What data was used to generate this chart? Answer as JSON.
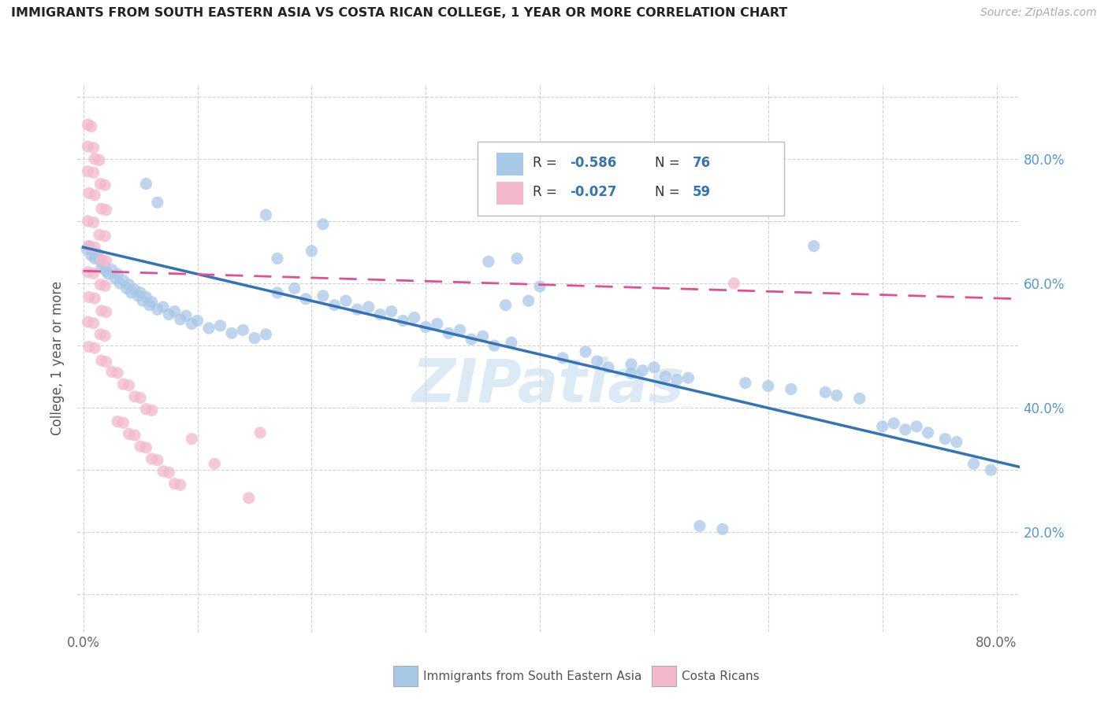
{
  "title": "IMMIGRANTS FROM SOUTH EASTERN ASIA VS COSTA RICAN COLLEGE, 1 YEAR OR MORE CORRELATION CHART",
  "source": "Source: ZipAtlas.com",
  "ylabel": "College, 1 year or more",
  "xlim": [
    -0.005,
    0.82
  ],
  "ylim": [
    0.04,
    0.92
  ],
  "legend_r1": "-0.586",
  "legend_n1": "76",
  "legend_r2": "-0.027",
  "legend_n2": "59",
  "blue_color": "#a8c8e8",
  "pink_color": "#f4b8cc",
  "blue_line_color": "#3474b5",
  "pink_line_color": "#e05090",
  "right_label_color": "#5599cc",
  "blue_scatter": [
    [
      0.003,
      0.655
    ],
    [
      0.005,
      0.66
    ],
    [
      0.007,
      0.645
    ],
    [
      0.009,
      0.65
    ],
    [
      0.01,
      0.64
    ],
    [
      0.012,
      0.648
    ],
    [
      0.014,
      0.638
    ],
    [
      0.016,
      0.625
    ],
    [
      0.018,
      0.63
    ],
    [
      0.02,
      0.62
    ],
    [
      0.022,
      0.615
    ],
    [
      0.025,
      0.622
    ],
    [
      0.028,
      0.608
    ],
    [
      0.03,
      0.615
    ],
    [
      0.032,
      0.6
    ],
    [
      0.035,
      0.605
    ],
    [
      0.038,
      0.592
    ],
    [
      0.04,
      0.598
    ],
    [
      0.042,
      0.585
    ],
    [
      0.045,
      0.59
    ],
    [
      0.048,
      0.58
    ],
    [
      0.05,
      0.585
    ],
    [
      0.052,
      0.572
    ],
    [
      0.055,
      0.578
    ],
    [
      0.058,
      0.565
    ],
    [
      0.06,
      0.57
    ],
    [
      0.065,
      0.558
    ],
    [
      0.07,
      0.562
    ],
    [
      0.075,
      0.55
    ],
    [
      0.08,
      0.555
    ],
    [
      0.085,
      0.542
    ],
    [
      0.09,
      0.548
    ],
    [
      0.095,
      0.535
    ],
    [
      0.1,
      0.54
    ],
    [
      0.11,
      0.528
    ],
    [
      0.12,
      0.532
    ],
    [
      0.13,
      0.52
    ],
    [
      0.14,
      0.525
    ],
    [
      0.15,
      0.512
    ],
    [
      0.16,
      0.518
    ],
    [
      0.055,
      0.76
    ],
    [
      0.065,
      0.73
    ],
    [
      0.16,
      0.71
    ],
    [
      0.21,
      0.695
    ],
    [
      0.17,
      0.64
    ],
    [
      0.2,
      0.652
    ],
    [
      0.17,
      0.585
    ],
    [
      0.185,
      0.592
    ],
    [
      0.195,
      0.575
    ],
    [
      0.21,
      0.58
    ],
    [
      0.22,
      0.565
    ],
    [
      0.23,
      0.572
    ],
    [
      0.24,
      0.558
    ],
    [
      0.25,
      0.562
    ],
    [
      0.26,
      0.55
    ],
    [
      0.27,
      0.555
    ],
    [
      0.28,
      0.54
    ],
    [
      0.29,
      0.545
    ],
    [
      0.3,
      0.53
    ],
    [
      0.31,
      0.535
    ],
    [
      0.32,
      0.52
    ],
    [
      0.33,
      0.525
    ],
    [
      0.34,
      0.51
    ],
    [
      0.35,
      0.515
    ],
    [
      0.355,
      0.635
    ],
    [
      0.38,
      0.64
    ],
    [
      0.37,
      0.565
    ],
    [
      0.39,
      0.572
    ],
    [
      0.36,
      0.5
    ],
    [
      0.375,
      0.505
    ],
    [
      0.4,
      0.595
    ],
    [
      0.42,
      0.48
    ],
    [
      0.44,
      0.49
    ],
    [
      0.45,
      0.475
    ],
    [
      0.46,
      0.465
    ],
    [
      0.48,
      0.47
    ],
    [
      0.49,
      0.46
    ],
    [
      0.5,
      0.465
    ],
    [
      0.48,
      0.455
    ],
    [
      0.51,
      0.45
    ],
    [
      0.52,
      0.445
    ],
    [
      0.53,
      0.448
    ],
    [
      0.54,
      0.21
    ],
    [
      0.56,
      0.205
    ],
    [
      0.58,
      0.44
    ],
    [
      0.6,
      0.435
    ],
    [
      0.62,
      0.43
    ],
    [
      0.64,
      0.66
    ],
    [
      0.65,
      0.425
    ],
    [
      0.66,
      0.42
    ],
    [
      0.68,
      0.415
    ],
    [
      0.7,
      0.37
    ],
    [
      0.71,
      0.375
    ],
    [
      0.72,
      0.365
    ],
    [
      0.73,
      0.37
    ],
    [
      0.74,
      0.36
    ],
    [
      0.755,
      0.35
    ],
    [
      0.765,
      0.345
    ],
    [
      0.78,
      0.31
    ],
    [
      0.795,
      0.3
    ]
  ],
  "pink_scatter": [
    [
      0.004,
      0.855
    ],
    [
      0.007,
      0.852
    ],
    [
      0.004,
      0.82
    ],
    [
      0.009,
      0.818
    ],
    [
      0.01,
      0.8
    ],
    [
      0.014,
      0.798
    ],
    [
      0.004,
      0.78
    ],
    [
      0.009,
      0.778
    ],
    [
      0.015,
      0.76
    ],
    [
      0.019,
      0.758
    ],
    [
      0.005,
      0.745
    ],
    [
      0.01,
      0.742
    ],
    [
      0.016,
      0.72
    ],
    [
      0.02,
      0.718
    ],
    [
      0.004,
      0.7
    ],
    [
      0.009,
      0.698
    ],
    [
      0.014,
      0.678
    ],
    [
      0.019,
      0.676
    ],
    [
      0.005,
      0.66
    ],
    [
      0.01,
      0.658
    ],
    [
      0.016,
      0.638
    ],
    [
      0.02,
      0.636
    ],
    [
      0.004,
      0.618
    ],
    [
      0.009,
      0.616
    ],
    [
      0.015,
      0.598
    ],
    [
      0.019,
      0.596
    ],
    [
      0.005,
      0.578
    ],
    [
      0.01,
      0.576
    ],
    [
      0.016,
      0.556
    ],
    [
      0.02,
      0.554
    ],
    [
      0.004,
      0.538
    ],
    [
      0.009,
      0.536
    ],
    [
      0.015,
      0.518
    ],
    [
      0.019,
      0.516
    ],
    [
      0.005,
      0.498
    ],
    [
      0.01,
      0.496
    ],
    [
      0.016,
      0.476
    ],
    [
      0.02,
      0.474
    ],
    [
      0.025,
      0.458
    ],
    [
      0.03,
      0.456
    ],
    [
      0.035,
      0.438
    ],
    [
      0.04,
      0.436
    ],
    [
      0.045,
      0.418
    ],
    [
      0.05,
      0.416
    ],
    [
      0.055,
      0.398
    ],
    [
      0.06,
      0.396
    ],
    [
      0.03,
      0.378
    ],
    [
      0.035,
      0.376
    ],
    [
      0.04,
      0.358
    ],
    [
      0.045,
      0.356
    ],
    [
      0.05,
      0.338
    ],
    [
      0.055,
      0.336
    ],
    [
      0.06,
      0.318
    ],
    [
      0.065,
      0.316
    ],
    [
      0.07,
      0.298
    ],
    [
      0.075,
      0.296
    ],
    [
      0.08,
      0.278
    ],
    [
      0.085,
      0.276
    ],
    [
      0.095,
      0.35
    ],
    [
      0.115,
      0.31
    ],
    [
      0.145,
      0.255
    ],
    [
      0.155,
      0.36
    ],
    [
      0.57,
      0.6
    ]
  ],
  "blue_trend": [
    0.0,
    0.82,
    0.658,
    0.305
  ],
  "pink_trend": [
    0.0,
    0.82,
    0.62,
    0.575
  ],
  "watermark": "ZIPatlas",
  "bg_color": "#ffffff",
  "grid_color": "#cccccc"
}
